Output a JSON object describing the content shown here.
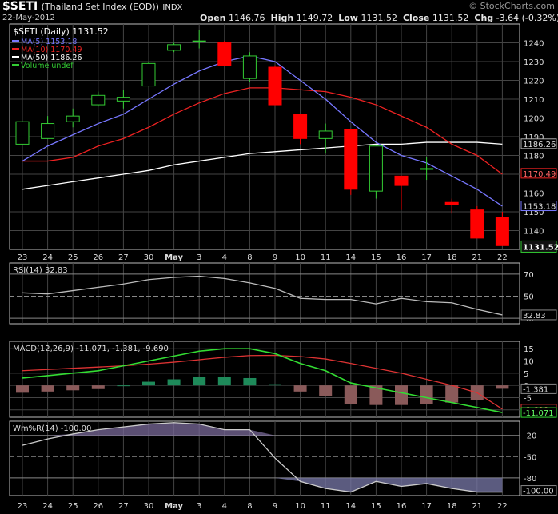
{
  "header": {
    "symbol": "$SETI",
    "name": "(Thailand Set Index (EOD))",
    "exchange": "INDX",
    "date": "22-May-2012",
    "open_label": "Open",
    "open": "1146.76",
    "high_label": "High",
    "high": "1149.72",
    "low_label": "Low",
    "low": "1131.52",
    "close_label": "Close",
    "close": "1131.52",
    "chg_label": "Chg",
    "chg": "-3.64 (-0.32%)",
    "watermark": "© StockCharts.com"
  },
  "colors": {
    "up": "#33cc33",
    "down": "#ff0000",
    "ma5": "#7777ff",
    "ma10": "#ee2222",
    "ma50": "#ffffff",
    "rsi": "#bbbbbb",
    "macd": "#33dd33",
    "signal": "#dd3333",
    "wmr": "#cccccc",
    "grid": "#444444"
  },
  "chart_data": [
    {
      "type": "candlestick",
      "title": "$SETI (Daily) 1131.52",
      "legend": [
        {
          "label": "MA(5) 1153.18",
          "color": "#7777ff"
        },
        {
          "label": "MA(10) 1170.49",
          "color": "#ee2222"
        },
        {
          "label": "MA(50) 1186.26",
          "color": "#ffffff"
        },
        {
          "label": "Volume undef",
          "color": "#33cc33"
        }
      ],
      "x": [
        "23",
        "24",
        "25",
        "26",
        "27",
        "30",
        "May",
        "3",
        "4",
        "8",
        "9",
        "10",
        "11",
        "14",
        "15",
        "16",
        "17",
        "18",
        "21",
        "22"
      ],
      "ylim": [
        1130,
        1250
      ],
      "yticks": [
        1140,
        1150,
        1160,
        1170,
        1180,
        1190,
        1200,
        1210,
        1220,
        1230,
        1240
      ],
      "candles": [
        {
          "o": 1186,
          "h": 1198,
          "l": 1186,
          "c": 1198
        },
        {
          "o": 1189,
          "h": 1201,
          "l": 1189,
          "c": 1197
        },
        {
          "o": 1198,
          "h": 1205,
          "l": 1195,
          "c": 1201
        },
        {
          "o": 1207,
          "h": 1214,
          "l": 1206,
          "c": 1212
        },
        {
          "o": 1209,
          "h": 1215,
          "l": 1205,
          "c": 1211
        },
        {
          "o": 1217,
          "h": 1230,
          "l": 1217,
          "c": 1229
        },
        {
          "o": 1236,
          "h": 1240,
          "l": 1235,
          "c": 1239
        },
        {
          "o": 1241,
          "h": 1247,
          "l": 1237,
          "c": 1241
        },
        {
          "o": 1240,
          "h": 1241,
          "l": 1228,
          "c": 1228
        },
        {
          "o": 1221,
          "h": 1235,
          "l": 1219,
          "c": 1233
        },
        {
          "o": 1227,
          "h": 1228,
          "l": 1207,
          "c": 1207
        },
        {
          "o": 1202,
          "h": 1202,
          "l": 1186,
          "c": 1189
        },
        {
          "o": 1189,
          "h": 1197,
          "l": 1181,
          "c": 1193
        },
        {
          "o": 1194,
          "h": 1194,
          "l": 1159,
          "c": 1162
        },
        {
          "o": 1161,
          "h": 1185,
          "l": 1157,
          "c": 1185
        },
        {
          "o": 1169,
          "h": 1169,
          "l": 1151,
          "c": 1164
        },
        {
          "o": 1173,
          "h": 1179,
          "l": 1167,
          "c": 1173
        },
        {
          "o": 1155,
          "h": 1157,
          "l": 1149,
          "c": 1154
        },
        {
          "o": 1151,
          "h": 1153,
          "l": 1136,
          "c": 1136
        },
        {
          "o": 1147,
          "h": 1150,
          "l": 1132,
          "c": 1132
        }
      ],
      "ma5": [
        1177,
        1185,
        1191,
        1197,
        1202,
        1210,
        1218,
        1225,
        1230,
        1233,
        1230,
        1220,
        1210,
        1198,
        1187,
        1180,
        1176,
        1169,
        1162,
        1153
      ],
      "ma10": [
        1177,
        1177,
        1179,
        1185,
        1189,
        1195,
        1202,
        1208,
        1213,
        1216,
        1216,
        1215,
        1214,
        1211,
        1207,
        1201,
        1195,
        1186,
        1180,
        1170
      ],
      "ma50": [
        1162,
        1164,
        1166,
        1168,
        1170,
        1172,
        1175,
        1177,
        1179,
        1181,
        1182,
        1183,
        1184,
        1185,
        1186,
        1186,
        1187,
        1187,
        1187,
        1186
      ],
      "value_labels": {
        "ma5": "1153.18",
        "ma10": "1170.49",
        "ma50": "1186.26",
        "close": "1131.52"
      }
    },
    {
      "type": "line",
      "title": "RSI(14) 32.83",
      "ylim": [
        25,
        80
      ],
      "yticks": [
        30,
        50,
        70
      ],
      "values": [
        53,
        52,
        55,
        58,
        61,
        65,
        67,
        68,
        66,
        62,
        57,
        48,
        47,
        47,
        43,
        48,
        45,
        44,
        38,
        33
      ],
      "value_label": "32.83"
    },
    {
      "type": "line",
      "title": "MACD(12,26,9) -11.071, -1.381, -9.690",
      "ylim": [
        -13,
        18
      ],
      "yticks": [
        -10,
        -5,
        0,
        5,
        10,
        15
      ],
      "macd": [
        3,
        4,
        5,
        6,
        8,
        10,
        12,
        14,
        15,
        15,
        13,
        9,
        6,
        1,
        -1,
        -3,
        -5,
        -7,
        -9,
        -11.071
      ],
      "signal": [
        6,
        6.5,
        7,
        7.5,
        8,
        8.7,
        9.5,
        10.5,
        11.5,
        12.2,
        12.3,
        11.8,
        10.8,
        9,
        7,
        5,
        2.5,
        0,
        -3,
        -9.69
      ],
      "histogram": [
        -3,
        -2.5,
        -2,
        -1.5,
        0,
        1.5,
        2.5,
        3.5,
        3.5,
        3,
        0.5,
        -2.5,
        -4.5,
        -7.5,
        -8,
        -8,
        -7.5,
        -7,
        -6,
        -1.381
      ],
      "value_labels": {
        "hist": "-1.381",
        "signal": "-9.690",
        "macd": "-11.071"
      }
    },
    {
      "type": "area",
      "title": "Wm%R(14) -100.00",
      "ylim": [
        -105,
        0
      ],
      "yticks": [
        -20,
        -50,
        -80,
        -100
      ],
      "values": [
        -34,
        -25,
        -18,
        -12,
        -8,
        -4,
        -2,
        -4,
        -12,
        -12,
        -52,
        -85,
        -95,
        -100,
        -85,
        -92,
        -88,
        -95,
        -100,
        -100
      ],
      "value_label": "-100.00"
    }
  ]
}
